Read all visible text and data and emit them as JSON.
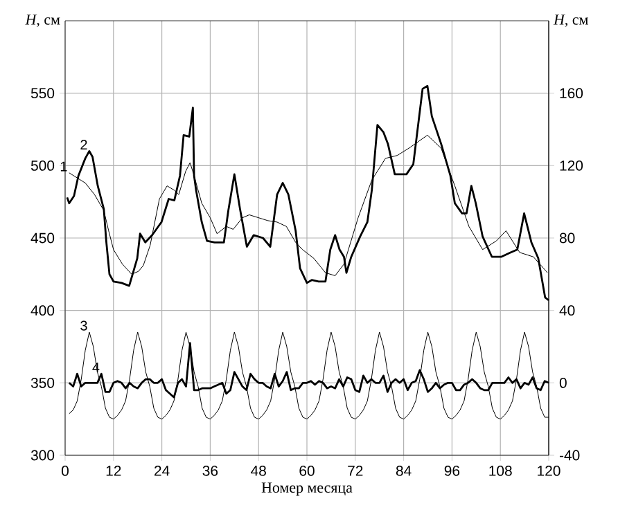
{
  "chart_data": {
    "type": "line",
    "xlabel": "Номер месяца",
    "ylabel": "*H*, см",
    "y2label": "*H*, см",
    "xlim": [
      0,
      120
    ],
    "xticks": [
      0,
      12,
      24,
      36,
      48,
      60,
      72,
      84,
      96,
      108,
      120
    ],
    "ylim": [
      300,
      600
    ],
    "yticks": [
      300,
      350,
      400,
      450,
      500,
      550
    ],
    "y2lim": [
      -40,
      200
    ],
    "y2ticks": [
      -40,
      0,
      40,
      80,
      120,
      160
    ],
    "grid": true,
    "series": [
      {
        "name": "1",
        "color": "#000000",
        "x": [
          1,
          5,
          7.3,
          9.6,
          10.8,
          12,
          14.2,
          16.5,
          18.2,
          19.4,
          21.1,
          23.4,
          25.3,
          27.1,
          28.2,
          29.9,
          31,
          32,
          33.9,
          36,
          37.7,
          40,
          41.7,
          44,
          45.7,
          48,
          50.3,
          52.6,
          54.9,
          57.2,
          58.9,
          61.7,
          64.6,
          67,
          69.2,
          72.7,
          76.1,
          79.5,
          82.4,
          85.3,
          89.9,
          93.3,
          96.7,
          100.2,
          103.6,
          107,
          109.4,
          112.8,
          116.2,
          119.7
        ],
        "values": [
          495,
          488,
          480,
          469,
          455,
          442,
          432,
          425,
          427,
          431,
          445,
          477,
          486,
          483,
          480,
          496,
          502,
          493,
          474,
          464,
          453,
          458,
          456,
          464,
          466,
          464,
          462,
          461,
          458,
          447,
          442,
          436,
          426,
          424,
          432,
          464,
          490,
          505,
          507,
          512,
          521,
          512,
          486,
          458,
          442,
          448,
          455,
          440,
          437,
          426
        ]
      },
      {
        "name": "2",
        "color": "#000000",
        "x": [
          0.5,
          1,
          2.2,
          3.3,
          5,
          6,
          6.8,
          8.1,
          9.6,
          10.2,
          11,
          12,
          14,
          15.9,
          17.9,
          18.6,
          19.9,
          21.6,
          23.9,
          25.7,
          27.1,
          28.5,
          29.4,
          30.8,
          31.7,
          32,
          32.5,
          33.9,
          35.2,
          37.1,
          39.4,
          40.5,
          42,
          43.4,
          45.1,
          46.8,
          49.1,
          50.9,
          52.6,
          54,
          55.4,
          57.2,
          58.3,
          60,
          61.2,
          62.9,
          64.6,
          65.8,
          67,
          68.1,
          69.2,
          69.8,
          71,
          73.2,
          75,
          76.1,
          77.5,
          79,
          80.1,
          81.8,
          84.7,
          86.4,
          88.7,
          89.9,
          91,
          93.3,
          95.6,
          96.7,
          98.5,
          99.6,
          100.8,
          101.9,
          103.6,
          105.9,
          108.2,
          110.5,
          112.2,
          113.9,
          115.7,
          117.4,
          119.1,
          120
        ],
        "values": [
          478,
          474,
          479,
          493,
          505,
          510,
          506,
          486,
          470,
          448,
          425,
          420,
          419,
          417,
          436,
          453,
          447,
          452,
          461,
          477,
          476,
          493,
          521,
          520,
          540,
          493,
          483,
          461,
          448,
          447,
          447,
          469,
          494,
          470,
          444,
          452,
          450,
          444,
          480,
          488,
          480,
          455,
          429,
          419,
          421,
          420,
          420,
          442,
          452,
          442,
          437,
          426,
          437,
          451,
          461,
          483,
          528,
          523,
          515,
          494,
          494,
          501,
          553,
          555,
          534,
          515,
          493,
          474,
          467,
          467,
          486,
          474,
          451,
          437,
          437,
          440,
          442,
          467,
          447,
          436,
          409,
          407
        ]
      },
      {
        "name": "3",
        "color": "#000000",
        "axis": "y2",
        "x": [
          1,
          2,
          3,
          4,
          5,
          6,
          7,
          8,
          9,
          10,
          11,
          12,
          13,
          14,
          15,
          16,
          17,
          18,
          19,
          20,
          21,
          22,
          23,
          24,
          25,
          26,
          27,
          28,
          29,
          30,
          31,
          32,
          33,
          34,
          35,
          36,
          37,
          38,
          39,
          40,
          41,
          42,
          43,
          44,
          45,
          46,
          47,
          48,
          49,
          50,
          51,
          52,
          53,
          54,
          55,
          56,
          57,
          58,
          59,
          60,
          61,
          62,
          63,
          64,
          65,
          66,
          67,
          68,
          69,
          70,
          71,
          72,
          73,
          74,
          75,
          76,
          77,
          78,
          79,
          80,
          81,
          82,
          83,
          84,
          85,
          86,
          87,
          88,
          89,
          90,
          91,
          92,
          93,
          94,
          95,
          96,
          97,
          98,
          99,
          100,
          101,
          102,
          103,
          104,
          105,
          106,
          107,
          108,
          109,
          110,
          111,
          112,
          113,
          114,
          115,
          116,
          117,
          118,
          119,
          120
        ],
        "values": [
          -17,
          -15,
          -10,
          2,
          18,
          28,
          20,
          6,
          -2,
          -14,
          -19,
          -20,
          -18,
          -15,
          -10,
          2,
          18,
          28,
          20,
          6,
          -2,
          -14,
          -19,
          -20,
          -18,
          -15,
          -10,
          2,
          18,
          28,
          20,
          6,
          -2,
          -14,
          -19,
          -20,
          -18,
          -15,
          -10,
          2,
          18,
          28,
          20,
          6,
          -2,
          -14,
          -19,
          -20,
          -18,
          -15,
          -10,
          2,
          18,
          28,
          20,
          6,
          -2,
          -14,
          -19,
          -20,
          -18,
          -15,
          -10,
          2,
          18,
          28,
          20,
          6,
          -2,
          -14,
          -19,
          -20,
          -18,
          -15,
          -10,
          2,
          18,
          28,
          20,
          6,
          -2,
          -14,
          -19,
          -20,
          -18,
          -15,
          -10,
          2,
          18,
          28,
          20,
          6,
          -2,
          -14,
          -19,
          -20,
          -18,
          -15,
          -10,
          2,
          18,
          28,
          20,
          6,
          -2,
          -14,
          -19,
          -20,
          -18,
          -15,
          -10,
          2,
          18,
          28,
          20,
          6,
          -2,
          -14,
          -19,
          -19
        ]
      },
      {
        "name": "4",
        "color": "#000000",
        "axis": "y2",
        "x": [
          1,
          2,
          3,
          4,
          5,
          6,
          7,
          8,
          9,
          10,
          11,
          12,
          13,
          14,
          15,
          16,
          17,
          18,
          19,
          20,
          21,
          22,
          23,
          24,
          25,
          26,
          27,
          28,
          29,
          30,
          31,
          32,
          33,
          34,
          35,
          36,
          37,
          38,
          39,
          40,
          41,
          42,
          43,
          44,
          45,
          46,
          47,
          48,
          49,
          50,
          51,
          52,
          53,
          54,
          55,
          56,
          57,
          58,
          59,
          60,
          61,
          62,
          63,
          64,
          65,
          66,
          67,
          68,
          69,
          70,
          71,
          72,
          73,
          74,
          75,
          76,
          77,
          78,
          79,
          80,
          81,
          82,
          83,
          84,
          85,
          86,
          87,
          88,
          89,
          90,
          91,
          92,
          93,
          94,
          95,
          96,
          97,
          98,
          99,
          100,
          101,
          102,
          103,
          104,
          105,
          106,
          107,
          108,
          109,
          110,
          111,
          112,
          113,
          114,
          115,
          116,
          117,
          118,
          119,
          120
        ],
        "values": [
          0,
          -2,
          5,
          -2,
          0,
          0,
          0,
          0,
          5,
          -5,
          -5,
          0,
          1,
          0,
          -3,
          0,
          -2,
          -3,
          0,
          2,
          2,
          0,
          0,
          2,
          -4,
          -6,
          -8,
          0,
          2,
          -2,
          22,
          -4,
          -4,
          -3,
          -3,
          -3,
          -2,
          -1,
          0,
          -6,
          -4,
          6,
          2,
          -2,
          -4,
          5,
          2,
          0,
          0,
          -2,
          -3,
          5,
          -2,
          1,
          6,
          -4,
          -3,
          -3,
          0,
          0,
          1,
          -1,
          1,
          0,
          -3,
          -2,
          -3,
          2,
          -2,
          3,
          2,
          -4,
          -5,
          4,
          0,
          2,
          0,
          0,
          4,
          -5,
          0,
          2,
          0,
          2,
          -4,
          0,
          1,
          7,
          2,
          -5,
          -3,
          0,
          -3,
          -1,
          0,
          0,
          -4,
          -4,
          -1,
          0,
          2,
          0,
          -3,
          -4,
          -4,
          0,
          0,
          0,
          0,
          3,
          0,
          2,
          -3,
          0,
          -1,
          3,
          -3,
          -4,
          1,
          0
        ]
      }
    ]
  }
}
